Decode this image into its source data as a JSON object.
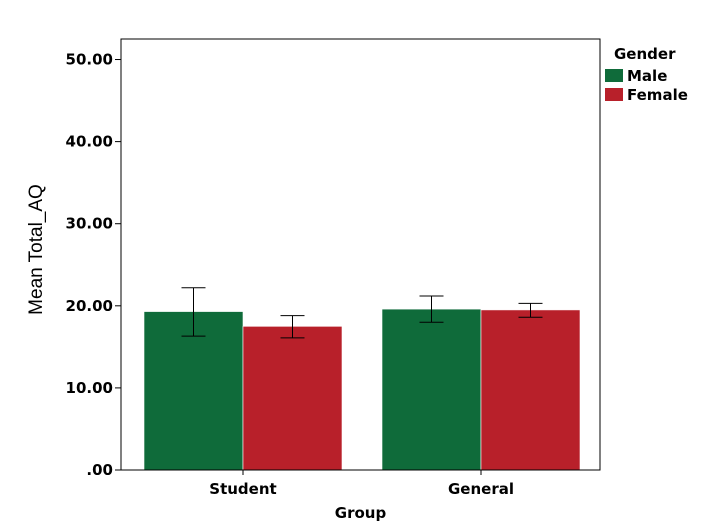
{
  "chart_data": {
    "type": "bar",
    "title": "",
    "xlabel": "Group",
    "ylabel": "Mean Total_AQ",
    "categories": [
      "Student",
      "General"
    ],
    "series": [
      {
        "name": "Male",
        "color": "#0f6b3a",
        "values": [
          19.3,
          19.6
        ],
        "error_low": [
          16.3,
          18.0
        ],
        "error_high": [
          22.2,
          21.2
        ]
      },
      {
        "name": "Female",
        "color": "#b8202a",
        "values": [
          17.5,
          19.5
        ],
        "error_low": [
          16.1,
          18.6
        ],
        "error_high": [
          18.8,
          20.3
        ]
      }
    ],
    "ylim": [
      0,
      52.5
    ],
    "yticks": [
      0,
      10,
      20,
      30,
      40,
      50
    ],
    "ytick_labels": [
      ".00",
      "10.00",
      "20.00",
      "30.00",
      "40.00",
      "50.00"
    ],
    "legend_title": "Gender",
    "legend_position": "top-right",
    "error_bars": true,
    "grid": false
  }
}
